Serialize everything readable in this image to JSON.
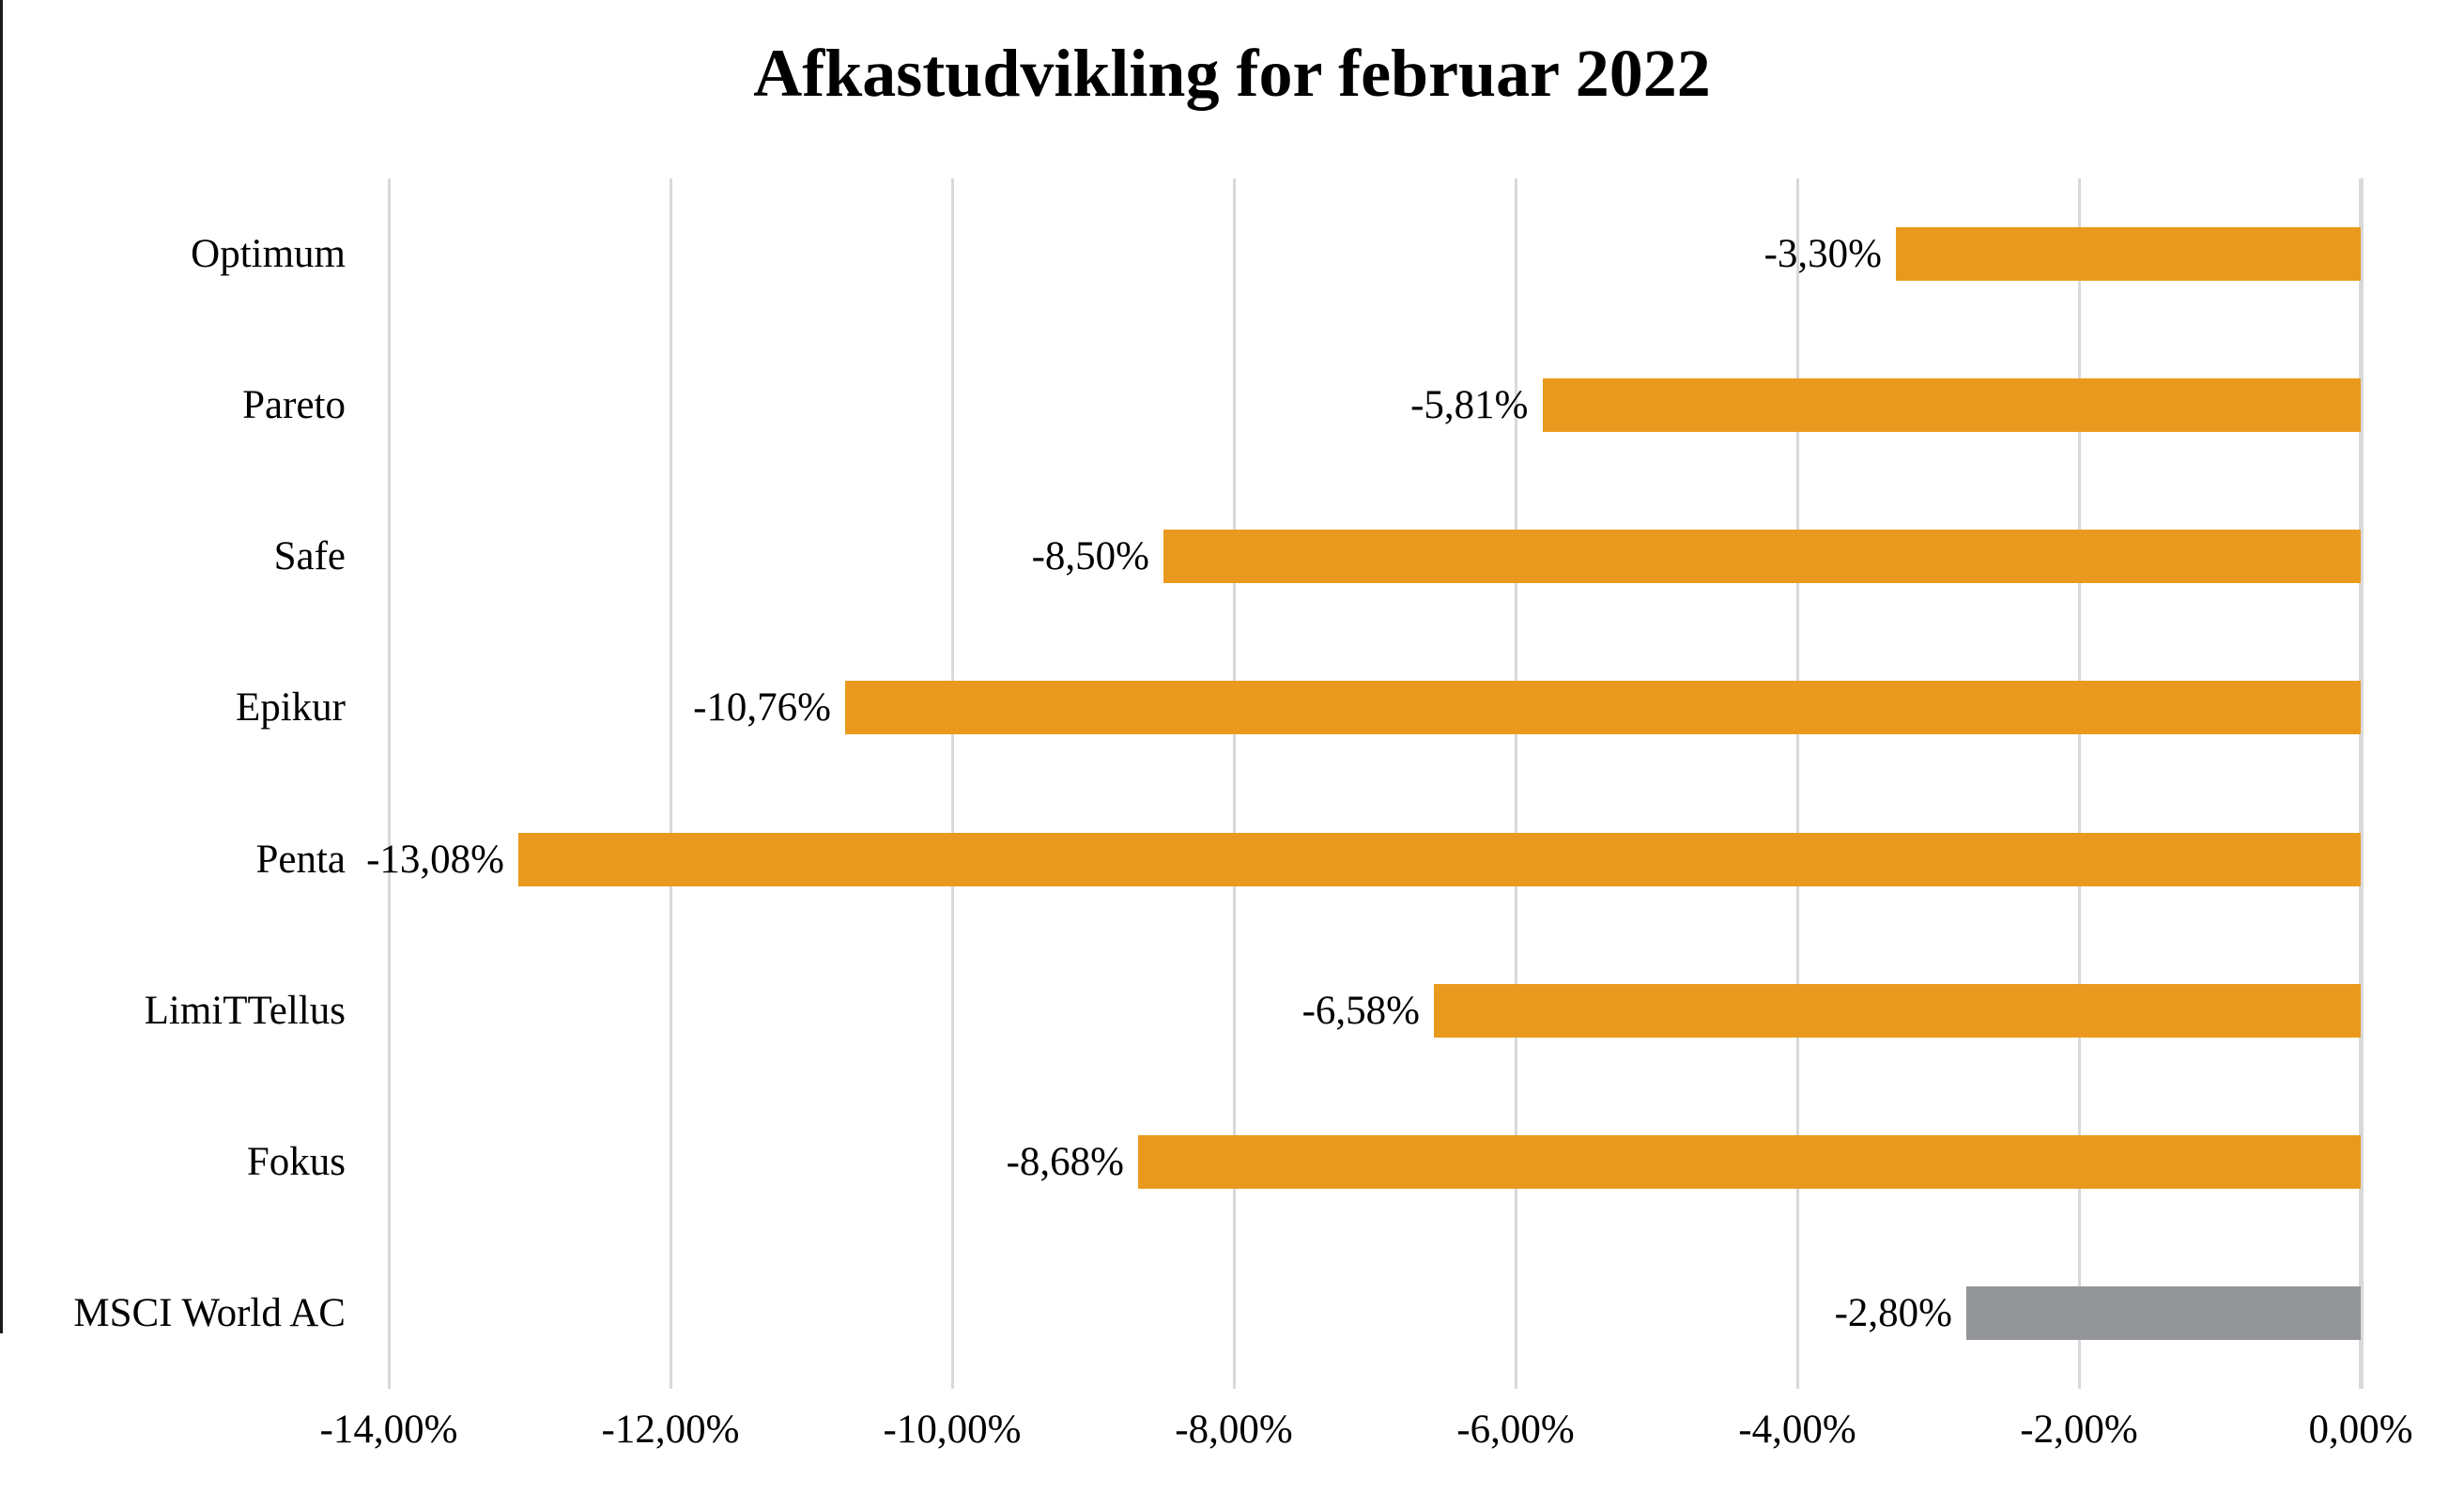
{
  "title": "Afkastudvikling for februar 2022",
  "chart_data": {
    "type": "bar",
    "orientation": "horizontal",
    "title": "Afkastudvikling for februar 2022",
    "categories": [
      "Optimum",
      "Pareto",
      "Safe",
      "Epikur",
      "Penta",
      "LimiTTellus",
      "Fokus",
      "MSCI World AC"
    ],
    "values": [
      -3.3,
      -5.81,
      -8.5,
      -10.76,
      -13.08,
      -6.58,
      -8.68,
      -2.8
    ],
    "data_labels": [
      "-3,30%",
      "-5,81%",
      "-8,50%",
      "-10,76%",
      "-13,08%",
      "-6,58%",
      "-8,68%",
      "-2,80%"
    ],
    "x_ticks": [
      {
        "value": -14,
        "label": "-14,00%"
      },
      {
        "value": -12,
        "label": "-12,00%"
      },
      {
        "value": -10,
        "label": "-10,00%"
      },
      {
        "value": -8,
        "label": "-8,00%"
      },
      {
        "value": -6,
        "label": "-6,00%"
      },
      {
        "value": -4,
        "label": "-4,00%"
      },
      {
        "value": -2,
        "label": "-2,00%"
      },
      {
        "value": 0,
        "label": "0,00%"
      }
    ],
    "xlim": [
      -14,
      0
    ],
    "grid": true,
    "legend": "none",
    "colors": {
      "series_bar": "#E99A1E",
      "benchmark_bar": "#939598",
      "gridline": "#D9D9D9",
      "text": "#000000"
    },
    "bar_color_names": [
      "orange",
      "orange",
      "orange",
      "orange",
      "orange",
      "orange",
      "orange",
      "gray"
    ]
  }
}
